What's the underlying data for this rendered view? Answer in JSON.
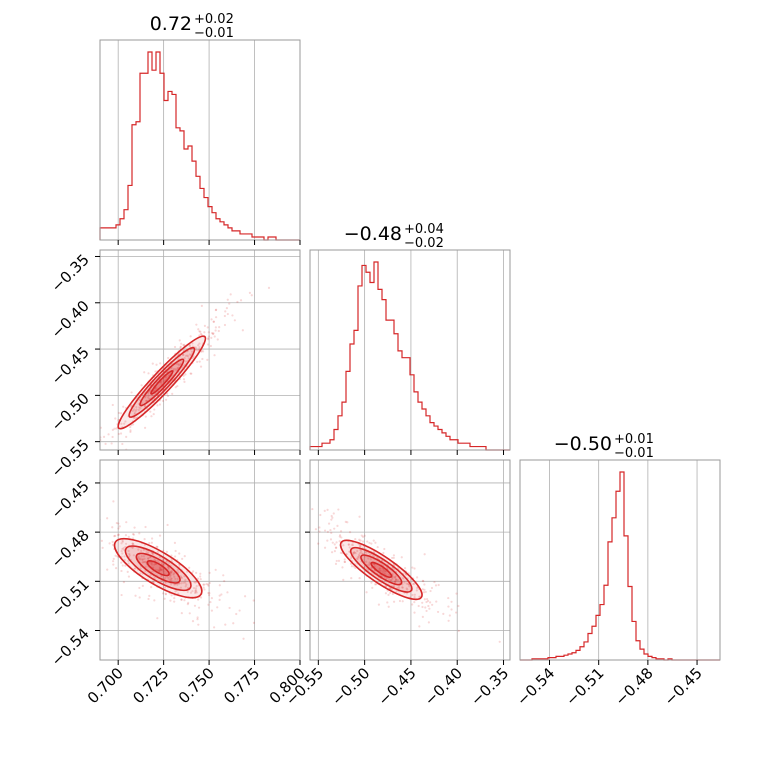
{
  "chart_data": {
    "type": "corner",
    "color": "#d62728",
    "parameters": [
      {
        "title_value": "0.72",
        "title_plus": "+0.02",
        "title_minus": "−0.01",
        "range": [
          0.69,
          0.8
        ],
        "ticks": [
          0.7,
          0.725,
          0.75,
          0.775,
          0.8
        ],
        "tick_labels": [
          "0.700",
          "0.725",
          "0.750",
          "0.775",
          "0.800"
        ]
      },
      {
        "title_value": "−0.48",
        "title_plus": "+0.04",
        "title_minus": "−0.02",
        "range": [
          -0.559,
          -0.343
        ],
        "ticks": [
          -0.55,
          -0.5,
          -0.45,
          -0.4,
          -0.35
        ],
        "tick_labels": [
          "−0.55",
          "−0.50",
          "−0.45",
          "−0.40",
          "−0.35"
        ]
      },
      {
        "title_value": "−0.50",
        "title_plus": "+0.01",
        "title_minus": "−0.01",
        "range": [
          -0.558,
          -0.436
        ],
        "ticks": [
          -0.54,
          -0.51,
          -0.48,
          -0.45
        ],
        "tick_labels": [
          "−0.54",
          "−0.51",
          "−0.48",
          "−0.45"
        ]
      }
    ],
    "histograms": [
      {
        "param": 0,
        "bin_edges_range": [
          0.69,
          0.8
        ],
        "counts": [
          4,
          4,
          4,
          4,
          5,
          7,
          10,
          18,
          38,
          39,
          55,
          55,
          62,
          56,
          62,
          55,
          46,
          49,
          48,
          37,
          36,
          30,
          31,
          26,
          21,
          17,
          14,
          11,
          9,
          7,
          6,
          5,
          4,
          3,
          3,
          2,
          2,
          2,
          1,
          1,
          1,
          0,
          1,
          1,
          0,
          0,
          0,
          0,
          0,
          0
        ]
      },
      {
        "param": 1,
        "bin_edges_range": [
          -0.559,
          -0.343
        ],
        "counts": [
          1,
          1,
          1,
          2,
          2,
          3,
          6,
          10,
          14,
          23,
          31,
          35,
          48,
          54,
          52,
          49,
          55,
          47,
          44,
          38,
          38,
          34,
          29,
          27,
          27,
          22,
          17,
          14,
          12,
          10,
          8,
          7,
          6,
          5,
          4,
          3,
          3,
          2,
          2,
          2,
          1,
          1,
          1,
          1,
          0,
          0,
          0,
          0,
          0,
          0
        ]
      },
      {
        "param": 2,
        "bin_edges_range": [
          -0.558,
          -0.436
        ],
        "counts": [
          0,
          0,
          0,
          1,
          1,
          1,
          1,
          2,
          2,
          3,
          3,
          4,
          5,
          6,
          8,
          11,
          15,
          22,
          28,
          37,
          46,
          62,
          98,
          118,
          140,
          156,
          103,
          61,
          32,
          16,
          9,
          5,
          3,
          2,
          1,
          1,
          0,
          1,
          0,
          0,
          0,
          0,
          0,
          0,
          0,
          0,
          0,
          0,
          0,
          0
        ]
      }
    ],
    "contour_panels": [
      {
        "x_param": 0,
        "y_param": 1,
        "mean": [
          0.724,
          -0.486
        ],
        "std": [
          0.012,
          0.025
        ],
        "corr": 0.95,
        "contour_levels_sigma": [
          0.5,
          1.0,
          1.5,
          2.0
        ]
      },
      {
        "x_param": 0,
        "y_param": 2,
        "mean": [
          0.722,
          -0.502
        ],
        "std": [
          0.012,
          0.009
        ],
        "corr": -0.78,
        "contour_levels_sigma": [
          0.5,
          1.0,
          1.5,
          2.0
        ]
      },
      {
        "x_param": 1,
        "y_param": 2,
        "mean": [
          -0.482,
          -0.503
        ],
        "std": [
          0.022,
          0.009
        ],
        "corr": -0.85,
        "contour_levels_sigma": [
          0.5,
          1.0,
          1.5,
          2.0
        ]
      }
    ],
    "grid": true
  }
}
